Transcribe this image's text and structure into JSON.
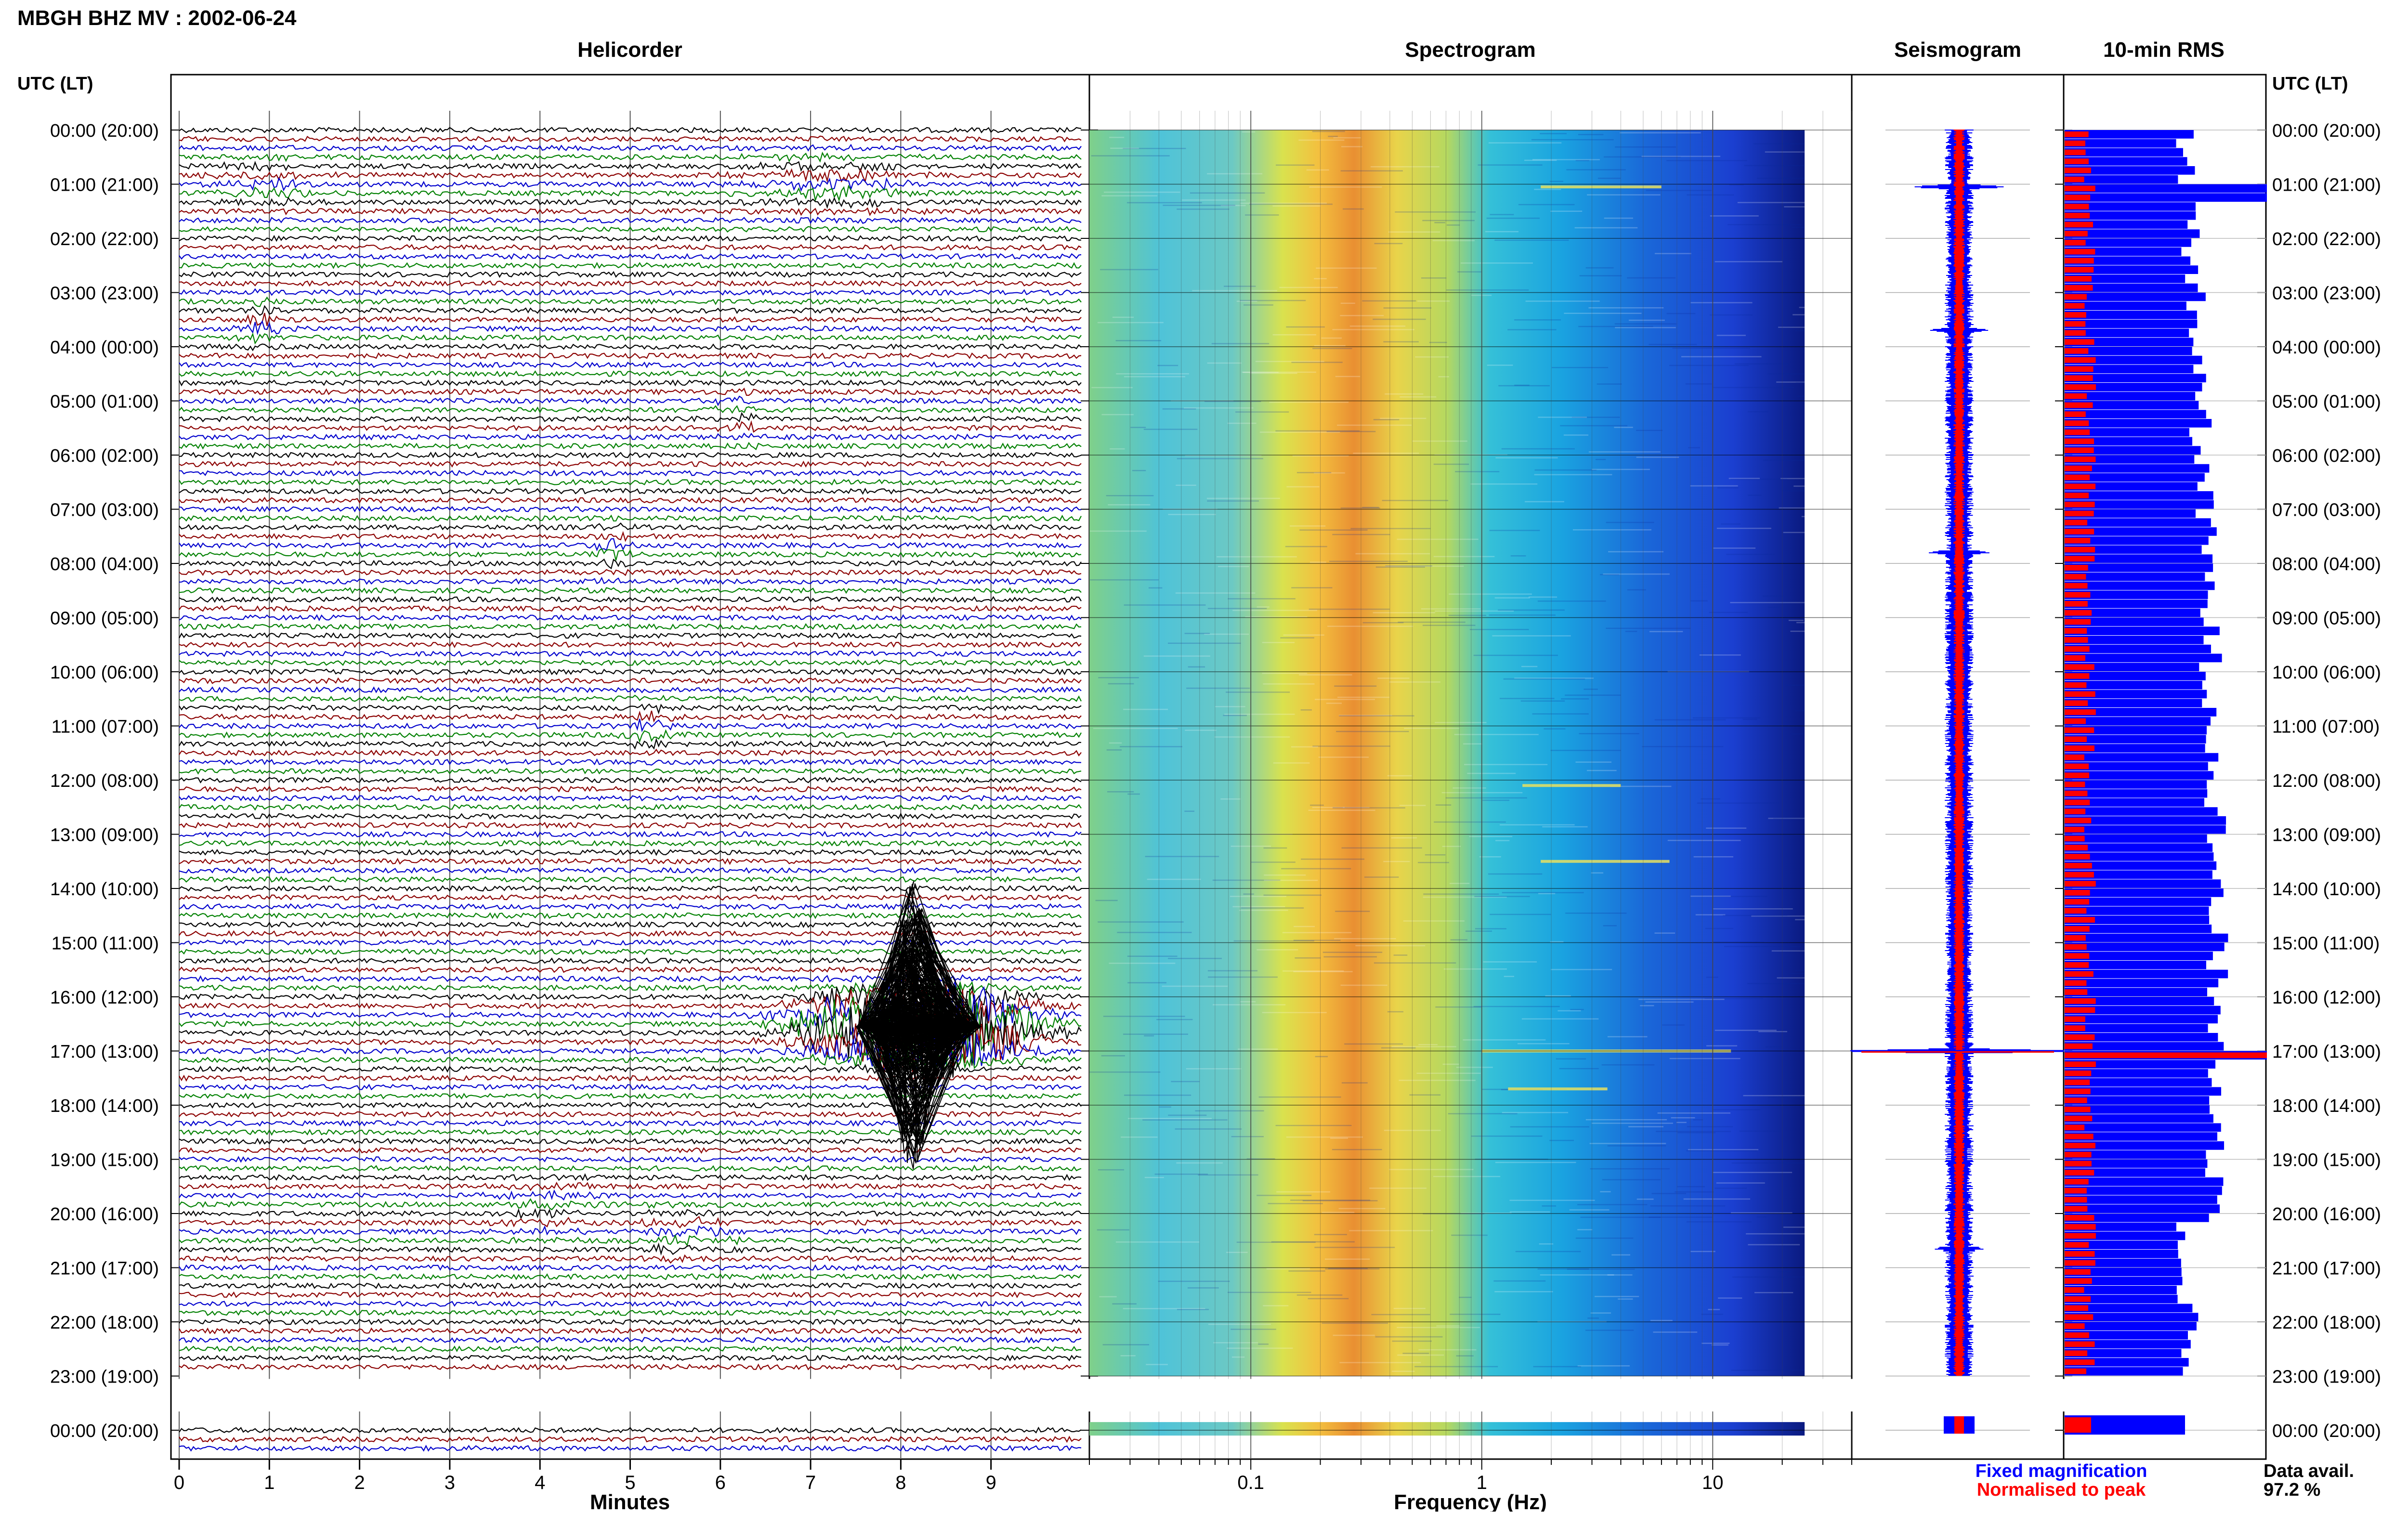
{
  "header": {
    "station_title": "MBGH BHZ MV : 2002-06-24",
    "utc_left_label": "UTC (LT)",
    "utc_right_label": "UTC (LT)"
  },
  "panels": {
    "helicorder": "Helicorder",
    "spectrogram": "Spectrogram",
    "seismogram": "Seismogram",
    "rms": "10-min RMS"
  },
  "time_labels": [
    "00:00 (20:00)",
    "01:00 (21:00)",
    "02:00 (22:00)",
    "03:00 (23:00)",
    "04:00 (00:00)",
    "05:00 (01:00)",
    "06:00 (02:00)",
    "07:00 (03:00)",
    "08:00 (04:00)",
    "09:00 (05:00)",
    "10:00 (06:00)",
    "11:00 (07:00)",
    "12:00 (08:00)",
    "13:00 (09:00)",
    "14:00 (10:00)",
    "15:00 (11:00)",
    "16:00 (12:00)",
    "17:00 (13:00)",
    "18:00 (14:00)",
    "19:00 (15:00)",
    "20:00 (16:00)",
    "21:00 (17:00)",
    "22:00 (18:00)",
    "23:00 (19:00)",
    "00:00 (20:00)"
  ],
  "axes": {
    "minutes_label": "Minutes",
    "minutes_ticks": [
      "0",
      "1",
      "2",
      "3",
      "4",
      "5",
      "6",
      "7",
      "8",
      "9"
    ],
    "frequency_label": "Frequency (Hz)",
    "frequency_ticks": [
      "0.1",
      "1",
      "10"
    ]
  },
  "legend": {
    "fixed": "Fixed magnification",
    "normalised": "Normalised to peak",
    "fixed_color": "#0000ff",
    "normalised_color": "#ff0000"
  },
  "data_avail": {
    "label": "Data avail.",
    "value": "97.2 %"
  },
  "trace_colors": [
    "#000000",
    "#8b0000",
    "#0000cd",
    "#008000"
  ],
  "chart_data": {
    "type": "heatmap",
    "title": "MBGH BHZ MV : 2002-06-24",
    "helicorder": {
      "x_units": "minutes",
      "xlim": [
        0,
        10
      ],
      "y_units": "hour (UTC)",
      "ylim": [
        0,
        24
      ],
      "traces_per_hour": 6,
      "events": [
        {
          "hour": 0.98,
          "minute": 7.2,
          "amp": 0.35,
          "len": 1.6,
          "color": "#0000cd"
        },
        {
          "hour": 0.98,
          "minute": 1.0,
          "amp": 0.25,
          "len": 1.0,
          "color": "#008000"
        },
        {
          "hour": 3.58,
          "minute": 0.9,
          "amp": 0.4,
          "len": 0.4,
          "color": "#0000cd"
        },
        {
          "hour": 5.32,
          "minute": 6.2,
          "amp": 0.3,
          "len": 0.5,
          "color": "#000000"
        },
        {
          "hour": 7.78,
          "minute": 4.8,
          "amp": 0.35,
          "len": 0.4,
          "color": "#0000cd"
        },
        {
          "hour": 11.0,
          "minute": 5.2,
          "amp": 0.3,
          "len": 0.5,
          "color": "#8b0000"
        },
        {
          "hour": 16.55,
          "minute": 8.2,
          "amp": 2.9,
          "len": 1.9,
          "color": "#000000"
        },
        {
          "hour": 19.98,
          "minute": 4.1,
          "amp": 0.25,
          "len": 1.1,
          "color": "#000000"
        },
        {
          "hour": 20.4,
          "minute": 5.6,
          "amp": 0.3,
          "len": 1.0,
          "color": "#008000"
        }
      ],
      "data_gap_hours": [
        23.0,
        23.85
      ]
    },
    "spectrogram": {
      "x_scale": "log",
      "xlim_hz": [
        0.02,
        40
      ],
      "data_end_hz": 25,
      "peak_band_hz": [
        0.25,
        0.6
      ],
      "spectral_lines": [
        {
          "hour": 1.05,
          "f1": 1.8,
          "f2": 6.0
        },
        {
          "hour": 12.1,
          "f1": 1.5,
          "f2": 4.0
        },
        {
          "hour": 13.5,
          "f1": 1.8,
          "f2": 6.5
        },
        {
          "hour": 17.0,
          "f1": 1.0,
          "f2": 12.0
        },
        {
          "hour": 17.7,
          "f1": 1.3,
          "f2": 3.5
        }
      ],
      "data_gap_hours": [
        23.0,
        23.85
      ]
    },
    "seismogram": {
      "peaks": [
        {
          "hour": 1.05,
          "amp": 0.35
        },
        {
          "hour": 3.7,
          "amp": 0.2
        },
        {
          "hour": 7.8,
          "amp": 0.2
        },
        {
          "hour": 17.0,
          "amp": 1.0
        },
        {
          "hour": 20.65,
          "amp": 0.15
        }
      ]
    },
    "rms": {
      "interval_minutes": 10,
      "spike_hours": [
        1.08,
        17.0
      ],
      "data_gap_hours": [
        23.0,
        23.85
      ]
    }
  }
}
